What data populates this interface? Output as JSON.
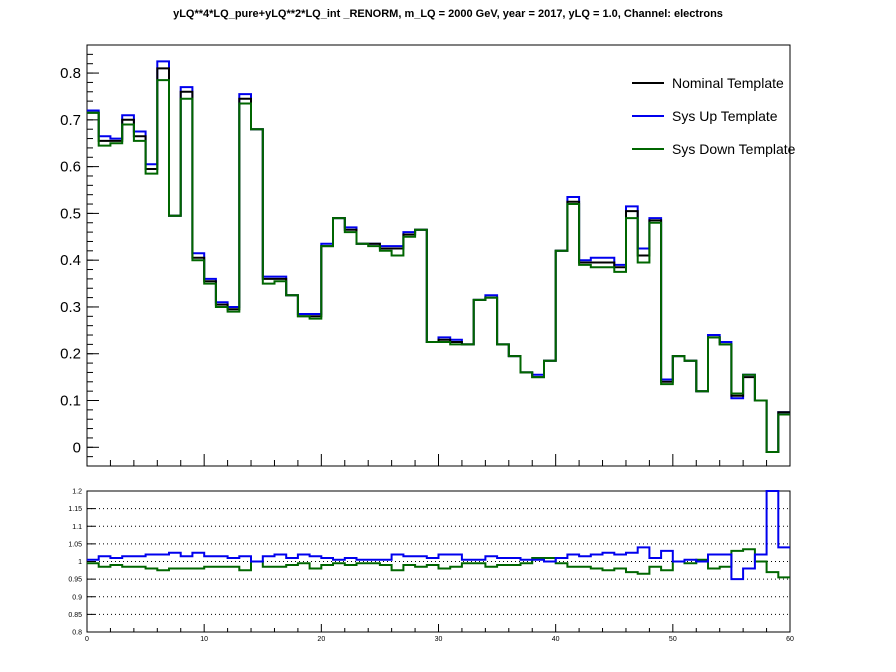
{
  "title": "yLQ**4*LQ_pure+yLQ**2*LQ_int _RENORM, m_LQ = 2000 GeV, year = 2017, yLQ = 1.0, Channel: electrons",
  "colors": {
    "nominal": "#000000",
    "sys_up": "#0000ee",
    "sys_down": "#006600"
  },
  "chart_data": [
    {
      "type": "line",
      "style": "step histogram",
      "panel": "main",
      "xlim": [
        0,
        60
      ],
      "ylim": [
        -0.04,
        0.86
      ],
      "y_ticks": [
        "0",
        "0.1",
        "0.2",
        "0.3",
        "0.4",
        "0.5",
        "0.6",
        "0.7",
        "0.8"
      ],
      "legend": {
        "position": "top-right",
        "entries": [
          "Nominal Template",
          "Sys Up Template",
          "Sys Down Template"
        ]
      },
      "bin_edges": [
        0,
        1,
        2,
        3,
        4,
        5,
        6,
        7,
        8,
        9,
        10,
        11,
        12,
        13,
        14,
        15,
        16,
        17,
        18,
        19,
        20,
        21,
        22,
        23,
        24,
        25,
        26,
        27,
        28,
        29,
        30,
        31,
        32,
        33,
        34,
        35,
        36,
        37,
        38,
        39,
        40,
        41,
        42,
        43,
        44,
        45,
        46,
        47,
        48,
        49,
        50,
        51,
        52,
        53,
        54,
        55,
        56,
        57,
        58,
        59,
        60
      ],
      "series": [
        {
          "name": "Nominal Template",
          "color_key": "nominal",
          "values": [
            0.715,
            0.655,
            0.655,
            0.7,
            0.665,
            0.595,
            0.81,
            0.495,
            0.76,
            0.405,
            0.355,
            0.305,
            0.295,
            0.745,
            0.68,
            0.36,
            0.36,
            0.325,
            0.28,
            0.28,
            0.43,
            0.49,
            0.465,
            0.435,
            0.435,
            0.425,
            0.425,
            0.455,
            0.465,
            0.225,
            0.23,
            0.225,
            0.22,
            0.315,
            0.32,
            0.22,
            0.195,
            0.16,
            0.15,
            0.185,
            0.42,
            0.525,
            0.395,
            0.395,
            0.395,
            0.385,
            0.505,
            0.41,
            0.485,
            0.14,
            0.195,
            0.185,
            0.12,
            0.235,
            0.22,
            0.11,
            0.15,
            0.1,
            -0.01,
            0.075
          ]
        },
        {
          "name": "Sys Up Template",
          "color_key": "sys_up",
          "values": [
            0.72,
            0.665,
            0.66,
            0.71,
            0.675,
            0.605,
            0.825,
            0.495,
            0.77,
            0.415,
            0.36,
            0.31,
            0.3,
            0.755,
            0.68,
            0.365,
            0.365,
            0.325,
            0.285,
            0.285,
            0.435,
            0.49,
            0.47,
            0.435,
            0.435,
            0.43,
            0.43,
            0.46,
            0.465,
            0.225,
            0.235,
            0.23,
            0.22,
            0.315,
            0.325,
            0.22,
            0.195,
            0.16,
            0.155,
            0.185,
            0.42,
            0.535,
            0.4,
            0.405,
            0.405,
            0.39,
            0.515,
            0.425,
            0.49,
            0.145,
            0.195,
            0.185,
            0.12,
            0.24,
            0.225,
            0.105,
            0.155,
            0.1,
            -0.01,
            0.075
          ]
        },
        {
          "name": "Sys Down Template",
          "color_key": "sys_down",
          "values": [
            0.715,
            0.645,
            0.65,
            0.69,
            0.655,
            0.585,
            0.785,
            0.495,
            0.745,
            0.4,
            0.35,
            0.3,
            0.29,
            0.735,
            0.68,
            0.35,
            0.355,
            0.325,
            0.28,
            0.275,
            0.43,
            0.49,
            0.46,
            0.435,
            0.43,
            0.42,
            0.41,
            0.45,
            0.465,
            0.225,
            0.225,
            0.22,
            0.22,
            0.315,
            0.32,
            0.22,
            0.195,
            0.16,
            0.15,
            0.185,
            0.42,
            0.52,
            0.39,
            0.385,
            0.385,
            0.375,
            0.49,
            0.395,
            0.48,
            0.135,
            0.195,
            0.185,
            0.12,
            0.235,
            0.22,
            0.115,
            0.155,
            0.1,
            -0.01,
            0.07
          ]
        }
      ]
    },
    {
      "type": "line",
      "style": "step histogram",
      "panel": "ratio",
      "xlim": [
        0,
        60
      ],
      "ylim": [
        0.8,
        1.2
      ],
      "grid": "horizontal dotted",
      "y_ticks": [
        "0.8",
        "0.85",
        "0.9",
        "0.95",
        "1",
        "1.05",
        "1.1",
        "1.15",
        "1.2"
      ],
      "x_ticks": [
        "0",
        "10",
        "20",
        "30",
        "40",
        "50",
        "60"
      ],
      "series": [
        {
          "name": "Sys Up Template",
          "color_key": "sys_up",
          "values": [
            1.005,
            1.015,
            1.01,
            1.015,
            1.015,
            1.02,
            1.02,
            1.025,
            1.015,
            1.025,
            1.015,
            1.015,
            1.01,
            1.015,
            1.0,
            1.015,
            1.02,
            1.01,
            1.02,
            1.015,
            1.01,
            1.005,
            1.01,
            1.005,
            1.005,
            1.005,
            1.02,
            1.015,
            1.015,
            1.01,
            1.02,
            1.02,
            1.005,
            1.005,
            1.015,
            1.01,
            1.01,
            1.005,
            1.005,
            1.0,
            1.01,
            1.02,
            1.015,
            1.02,
            1.025,
            1.02,
            1.025,
            1.04,
            1.01,
            1.03,
            1.0,
            1.005,
            1.0,
            1.02,
            1.02,
            0.95,
            0.98,
            1.02,
            1.3,
            1.04
          ]
        },
        {
          "name": "Sys Down Template",
          "color_key": "sys_down",
          "values": [
            0.995,
            0.985,
            0.99,
            0.985,
            0.985,
            0.98,
            0.975,
            0.98,
            0.98,
            0.98,
            0.985,
            0.985,
            0.985,
            0.975,
            1.0,
            0.985,
            0.985,
            0.99,
            0.995,
            0.98,
            0.99,
            0.995,
            0.99,
            0.995,
            0.995,
            0.99,
            0.975,
            0.99,
            0.985,
            0.99,
            0.98,
            0.985,
            0.995,
            0.995,
            0.985,
            0.99,
            0.99,
            0.995,
            1.01,
            1.01,
            0.995,
            0.985,
            0.985,
            0.98,
            0.975,
            0.98,
            0.97,
            0.965,
            0.985,
            0.975,
            1.0,
            0.995,
            1.005,
            0.98,
            0.985,
            1.03,
            1.035,
            1.0,
            0.97,
            0.955
          ]
        }
      ]
    }
  ]
}
